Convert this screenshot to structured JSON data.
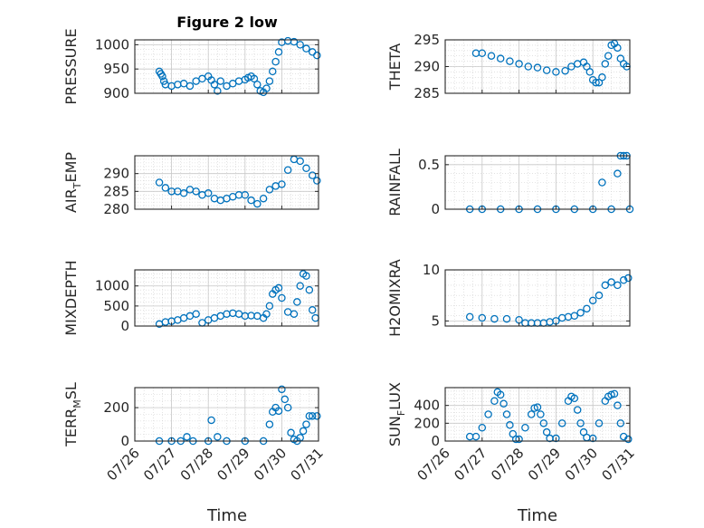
{
  "title": "Figure 2 low",
  "x_axis_label": "Time",
  "x_ticks": [
    "07/26",
    "07/27",
    "07/28",
    "07/29",
    "07/30",
    "07/31"
  ],
  "series_color": "#0072BD",
  "chart_data": [
    {
      "type": "scatter",
      "name": "PRESSURE",
      "ylabel": "PRESSURE",
      "ylim": [
        900,
        1010
      ],
      "yticks": [
        900,
        950,
        1000
      ],
      "xlim": [
        "07/26",
        "07/31"
      ],
      "grid": true,
      "x": [
        "07/26 16:00",
        "07/26 17:00",
        "07/26 18:00",
        "07/26 19:00",
        "07/26 20:00",
        "07/27 00:00",
        "07/27 04:00",
        "07/27 08:00",
        "07/27 12:00",
        "07/27 16:00",
        "07/27 20:00",
        "07/28 00:00",
        "07/28 02:00",
        "07/28 04:00",
        "07/28 06:00",
        "07/28 08:00",
        "07/28 12:00",
        "07/28 16:00",
        "07/28 20:00",
        "07/29 00:00",
        "07/29 02:00",
        "07/29 04:00",
        "07/29 06:00",
        "07/29 08:00",
        "07/29 10:00",
        "07/29 12:00",
        "07/29 14:00",
        "07/29 16:00",
        "07/29 18:00",
        "07/29 20:00",
        "07/29 22:00",
        "07/30 00:00",
        "07/30 04:00",
        "07/30 08:00",
        "07/30 12:00",
        "07/30 16:00",
        "07/30 20:00",
        "07/30 23:00"
      ],
      "y": [
        945,
        940,
        935,
        925,
        918,
        915,
        918,
        920,
        915,
        925,
        930,
        935,
        927,
        918,
        905,
        925,
        915,
        920,
        925,
        928,
        932,
        935,
        930,
        918,
        905,
        902,
        910,
        925,
        945,
        965,
        985,
        1005,
        1008,
        1006,
        1000,
        992,
        985,
        978
      ]
    },
    {
      "type": "scatter",
      "name": "THETA",
      "ylabel": "THETA",
      "ylim": [
        285,
        295
      ],
      "yticks": [
        285,
        290,
        295
      ],
      "xlim": [
        "07/26",
        "07/31"
      ],
      "grid": true,
      "x": [
        "07/26 20:00",
        "07/27 00:00",
        "07/27 06:00",
        "07/27 12:00",
        "07/27 18:00",
        "07/28 00:00",
        "07/28 06:00",
        "07/28 12:00",
        "07/28 18:00",
        "07/29 00:00",
        "07/29 06:00",
        "07/29 10:00",
        "07/29 14:00",
        "07/29 18:00",
        "07/29 20:00",
        "07/29 22:00",
        "07/30 00:00",
        "07/30 02:00",
        "07/30 04:00",
        "07/30 06:00",
        "07/30 08:00",
        "07/30 10:00",
        "07/30 12:00",
        "07/30 14:00",
        "07/30 16:00",
        "07/30 18:00",
        "07/30 20:00",
        "07/30 22:00"
      ],
      "y": [
        292.5,
        292.5,
        292.0,
        291.5,
        291.0,
        290.5,
        290.0,
        289.8,
        289.3,
        289.0,
        289.2,
        290.0,
        290.5,
        290.8,
        290.0,
        289.0,
        287.5,
        287.0,
        287.0,
        288.0,
        290.5,
        292.0,
        294.0,
        294.3,
        293.5,
        291.5,
        290.5,
        290.0
      ]
    },
    {
      "type": "scatter",
      "name": "AIR_TEMP",
      "ylabel": "AIR_TEMP",
      "ylim": [
        280,
        295
      ],
      "yticks": [
        280,
        285,
        290
      ],
      "xlim": [
        "07/26",
        "07/31"
      ],
      "grid": true,
      "x": [
        "07/26 16:00",
        "07/26 20:00",
        "07/27 00:00",
        "07/27 04:00",
        "07/27 08:00",
        "07/27 12:00",
        "07/27 16:00",
        "07/27 20:00",
        "07/28 00:00",
        "07/28 04:00",
        "07/28 08:00",
        "07/28 12:00",
        "07/28 16:00",
        "07/28 20:00",
        "07/29 00:00",
        "07/29 04:00",
        "07/29 08:00",
        "07/29 12:00",
        "07/29 16:00",
        "07/29 20:00",
        "07/30 00:00",
        "07/30 04:00",
        "07/30 08:00",
        "07/30 12:00",
        "07/30 16:00",
        "07/30 20:00",
        "07/30 23:00"
      ],
      "y": [
        287.5,
        286.0,
        285.0,
        285.0,
        284.5,
        285.5,
        285.0,
        284.0,
        284.5,
        283.0,
        282.5,
        283.0,
        283.5,
        284.0,
        284.0,
        282.5,
        281.5,
        283.0,
        285.5,
        286.5,
        287.0,
        291.0,
        294.0,
        293.5,
        291.5,
        289.5,
        288.0
      ]
    },
    {
      "type": "scatter",
      "name": "RAINFALL",
      "ylabel": "RAINFALL",
      "ylim": [
        0,
        0.6
      ],
      "yticks": [
        0,
        0.5
      ],
      "xlim": [
        "07/26",
        "07/31"
      ],
      "grid": true,
      "x": [
        "07/26 16:00",
        "07/27 00:00",
        "07/27 12:00",
        "07/28 00:00",
        "07/28 12:00",
        "07/29 00:00",
        "07/29 12:00",
        "07/30 00:00",
        "07/30 06:00",
        "07/30 12:00",
        "07/30 16:00",
        "07/30 18:00",
        "07/30 20:00",
        "07/30 22:00",
        "07/31 00:00"
      ],
      "y": [
        0,
        0,
        0,
        0,
        0,
        0,
        0,
        0,
        0.3,
        0,
        0.4,
        0.6,
        0.6,
        0.6,
        0
      ]
    },
    {
      "type": "scatter",
      "name": "MIXDEPTH",
      "ylabel": "MIXDEPTH",
      "ylim": [
        0,
        1400
      ],
      "yticks": [
        0,
        500,
        1000
      ],
      "xlim": [
        "07/26",
        "07/31"
      ],
      "grid": true,
      "x": [
        "07/26 16:00",
        "07/26 20:00",
        "07/27 00:00",
        "07/27 04:00",
        "07/27 08:00",
        "07/27 12:00",
        "07/27 16:00",
        "07/27 20:00",
        "07/28 00:00",
        "07/28 04:00",
        "07/28 08:00",
        "07/28 12:00",
        "07/28 16:00",
        "07/28 20:00",
        "07/29 00:00",
        "07/29 04:00",
        "07/29 08:00",
        "07/29 12:00",
        "07/29 14:00",
        "07/29 16:00",
        "07/29 18:00",
        "07/29 20:00",
        "07/29 22:00",
        "07/30 00:00",
        "07/30 04:00",
        "07/30 08:00",
        "07/30 10:00",
        "07/30 12:00",
        "07/30 14:00",
        "07/30 16:00",
        "07/30 18:00",
        "07/30 20:00",
        "07/30 22:00"
      ],
      "y": [
        50,
        100,
        120,
        150,
        200,
        250,
        300,
        80,
        150,
        200,
        250,
        300,
        320,
        300,
        250,
        260,
        250,
        200,
        300,
        500,
        800,
        900,
        950,
        700,
        350,
        300,
        600,
        1000,
        1300,
        1250,
        900,
        400,
        200
      ]
    },
    {
      "type": "scatter",
      "name": "H2OMIXRA",
      "ylabel": "H2OMIXRA",
      "ylim": [
        4.5,
        10
      ],
      "yticks": [
        5,
        10
      ],
      "xlim": [
        "07/26",
        "07/31"
      ],
      "grid": true,
      "x": [
        "07/26 16:00",
        "07/27 00:00",
        "07/27 08:00",
        "07/27 16:00",
        "07/28 00:00",
        "07/28 04:00",
        "07/28 08:00",
        "07/28 12:00",
        "07/28 16:00",
        "07/28 20:00",
        "07/29 00:00",
        "07/29 04:00",
        "07/29 08:00",
        "07/29 12:00",
        "07/29 16:00",
        "07/29 20:00",
        "07/30 00:00",
        "07/30 04:00",
        "07/30 08:00",
        "07/30 12:00",
        "07/30 16:00",
        "07/30 20:00",
        "07/30 23:00"
      ],
      "y": [
        5.4,
        5.3,
        5.2,
        5.2,
        5.1,
        4.8,
        4.8,
        4.8,
        4.8,
        4.9,
        5.0,
        5.3,
        5.4,
        5.5,
        5.8,
        6.2,
        7.0,
        7.5,
        8.5,
        8.8,
        8.5,
        9.0,
        9.2
      ]
    },
    {
      "type": "scatter",
      "name": "TERR_MSL",
      "ylabel": "TERR_MSL",
      "ylim": [
        0,
        320
      ],
      "yticks": [
        0,
        200
      ],
      "xlim": [
        "07/26",
        "07/31"
      ],
      "grid": true,
      "x": [
        "07/26 16:00",
        "07/27 00:00",
        "07/27 06:00",
        "07/27 10:00",
        "07/27 14:00",
        "07/28 00:00",
        "07/28 02:00",
        "07/28 06:00",
        "07/28 12:00",
        "07/29 00:00",
        "07/29 12:00",
        "07/29 16:00",
        "07/29 18:00",
        "07/29 20:00",
        "07/29 22:00",
        "07/30 00:00",
        "07/30 02:00",
        "07/30 04:00",
        "07/30 06:00",
        "07/30 08:00",
        "07/30 10:00",
        "07/30 12:00",
        "07/30 14:00",
        "07/30 16:00",
        "07/30 18:00",
        "07/30 20:00",
        "07/30 23:00"
      ],
      "y": [
        0,
        0,
        0,
        25,
        0,
        0,
        125,
        25,
        0,
        0,
        0,
        100,
        175,
        200,
        180,
        310,
        250,
        200,
        50,
        10,
        0,
        20,
        60,
        100,
        150,
        150,
        150
      ]
    },
    {
      "type": "scatter",
      "name": "SUN_FLUX",
      "ylabel": "SUN_FLUX",
      "ylim": [
        0,
        600
      ],
      "yticks": [
        0,
        200,
        400
      ],
      "xlim": [
        "07/26",
        "07/31"
      ],
      "grid": true,
      "x": [
        "07/26 16:00",
        "07/26 20:00",
        "07/27 00:00",
        "07/27 04:00",
        "07/27 08:00",
        "07/27 10:00",
        "07/27 12:00",
        "07/27 14:00",
        "07/27 16:00",
        "07/27 18:00",
        "07/27 20:00",
        "07/27 22:00",
        "07/28 00:00",
        "07/28 04:00",
        "07/28 08:00",
        "07/28 10:00",
        "07/28 12:00",
        "07/28 14:00",
        "07/28 16:00",
        "07/28 18:00",
        "07/28 20:00",
        "07/29 00:00",
        "07/29 04:00",
        "07/29 08:00",
        "07/29 10:00",
        "07/29 12:00",
        "07/29 14:00",
        "07/29 16:00",
        "07/29 18:00",
        "07/29 20:00",
        "07/30 00:00",
        "07/30 04:00",
        "07/30 08:00",
        "07/30 10:00",
        "07/30 12:00",
        "07/30 14:00",
        "07/30 16:00",
        "07/30 18:00",
        "07/30 20:00",
        "07/30 23:00"
      ],
      "y": [
        50,
        50,
        150,
        300,
        450,
        550,
        520,
        420,
        300,
        180,
        80,
        20,
        20,
        150,
        300,
        370,
        380,
        300,
        200,
        100,
        30,
        30,
        200,
        450,
        500,
        480,
        350,
        200,
        100,
        40,
        30,
        200,
        450,
        500,
        520,
        530,
        400,
        200,
        50,
        20
      ]
    }
  ]
}
